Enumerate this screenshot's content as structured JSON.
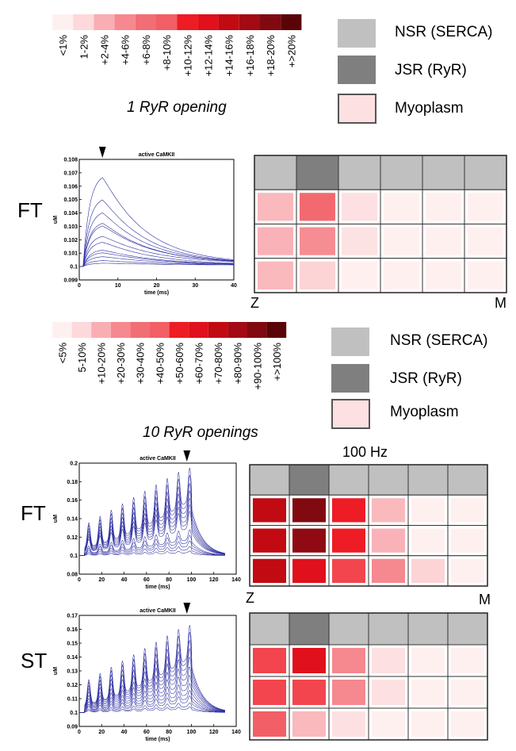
{
  "scale_top": {
    "labels": [
      "<1%",
      "1-2%",
      "+2-4%",
      "+4-6%",
      "+6-8%",
      "+8-10%",
      "+10-12%",
      "+12-14%",
      "+14-16%",
      "+16-18%",
      "+18-20%",
      "+>20%"
    ],
    "colors": [
      "#fff0f0",
      "#fdd9db",
      "#f9aeb4",
      "#f68890",
      "#f26e75",
      "#f25f66",
      "#ee1c24",
      "#e0101c",
      "#c20a12",
      "#a30a14",
      "#800a10",
      "#5a0408"
    ]
  },
  "scale_mid": {
    "labels": [
      "<5%",
      "5-10%",
      "+10-20%",
      "+20-30%",
      "+30-40%",
      "+40-50%",
      "+50-60%",
      "+60-70%",
      "+70-80%",
      "+80-90%",
      "+90-100%",
      "+>100%"
    ],
    "colors": [
      "#fff0f0",
      "#fdd9db",
      "#f9aeb4",
      "#f68890",
      "#f26e75",
      "#f25f66",
      "#ee1c24",
      "#e0101c",
      "#c20a12",
      "#a30a14",
      "#800a10",
      "#5a0408"
    ]
  },
  "legend_top": {
    "items": [
      {
        "label": "NSR (SERCA)",
        "color": "#c0c0c0"
      },
      {
        "label": "JSR (RyR)",
        "color": "#7f7f7f"
      },
      {
        "label": "Myoplasm",
        "color": "#fde0e1"
      }
    ]
  },
  "legend_mid": {
    "items": [
      {
        "label": "NSR (SERCA)",
        "color": "#c0c0c0"
      },
      {
        "label": "JSR (RyR)",
        "color": "#7f7f7f"
      },
      {
        "label": "Myoplasm",
        "color": "#fde0e1"
      }
    ]
  },
  "captions": {
    "top": "1 RyR opening",
    "mid": "10 RyR openings"
  },
  "row_labels": {
    "ft1": "FT",
    "ft2": "FT",
    "st": "ST"
  },
  "axis_marks": {
    "z1": "Z",
    "m1": "M",
    "z2": "Z",
    "m2": "M"
  },
  "frequency": "100 Hz",
  "plot1": {
    "title": "active CaMKII",
    "ylabel": "uM",
    "xlabel": "time (ms)",
    "xticks": [
      "0",
      "10",
      "20",
      "30",
      "40"
    ],
    "yticks": [
      "0.099",
      "0.1",
      "0.101",
      "0.102",
      "0.103",
      "0.104",
      "0.105",
      "0.106",
      "0.107",
      "0.108"
    ],
    "xlim": [
      0,
      40
    ],
    "ylim": [
      0.099,
      0.108
    ],
    "marker_x": 6,
    "line_color": "#2c2ca0",
    "peaks": [
      0.1067,
      0.105,
      0.104,
      0.1032,
      0.103,
      0.1022,
      0.1018,
      0.1012,
      0.101,
      0.1007,
      0.1004,
      0.1002
    ]
  },
  "plot2": {
    "title": "active CaMKII",
    "ylabel": "uM",
    "xlabel": "time (ms)",
    "xticks": [
      "0",
      "20",
      "40",
      "60",
      "80",
      "100",
      "120",
      "140"
    ],
    "yticks": [
      "0.08",
      "0.1",
      "0.12",
      "0.14",
      "0.16",
      "0.18",
      "0.2"
    ],
    "xlim": [
      0,
      140
    ],
    "ylim": [
      0.08,
      0.2
    ],
    "marker_x": 96,
    "line_color": "#2c2ca0",
    "final_peaks": [
      0.195,
      0.187,
      0.178,
      0.17,
      0.162,
      0.155,
      0.148,
      0.128,
      0.122,
      0.116,
      0.11,
      0.105
    ]
  },
  "plot3": {
    "title": "active CaMKII",
    "ylabel": "uM",
    "xlabel": "time (ms)",
    "xticks": [
      "0",
      "20",
      "40",
      "60",
      "80",
      "100",
      "120",
      "140"
    ],
    "yticks": [
      "0.09",
      "0.1",
      "0.11",
      "0.12",
      "0.13",
      "0.14",
      "0.15",
      "0.16",
      "0.17"
    ],
    "xlim": [
      0,
      140
    ],
    "ylim": [
      0.09,
      0.17
    ],
    "marker_x": 96,
    "line_color": "#2c2ca0",
    "final_peaks": [
      0.163,
      0.158,
      0.152,
      0.146,
      0.14,
      0.133,
      0.127,
      0.121,
      0.116,
      0.112,
      0.107,
      0.104
    ]
  },
  "grid1": {
    "top_colors": [
      "#c0c0c0",
      "#7f7f7f",
      "#c0c0c0",
      "#c0c0c0",
      "#c0c0c0",
      "#c0c0c0"
    ],
    "rows": [
      [
        "#f9b9bd",
        "#f26a70",
        "#fde0e1",
        "#fff0f0",
        "#fff0f0",
        "#fff0f0"
      ],
      [
        "#f9b2b7",
        "#f58d93",
        "#fde2e3",
        "#fff0f0",
        "#fff0f0",
        "#fff0f0"
      ],
      [
        "#f9b9bd",
        "#fcd4d6",
        "#fff0f0",
        "#fff0f0",
        "#fff0f0",
        "#fff0f0"
      ]
    ]
  },
  "grid2": {
    "top_colors": [
      "#c0c0c0",
      "#7f7f7f",
      "#c0c0c0",
      "#c0c0c0",
      "#c0c0c0",
      "#c0c0c0"
    ],
    "rows": [
      [
        "#c20a12",
        "#800a10",
        "#ee1c24",
        "#f9b9bd",
        "#fff0f0",
        "#fff0f0"
      ],
      [
        "#c20a12",
        "#8f0a12",
        "#ee1c24",
        "#f9b2b7",
        "#fff0f0",
        "#fff0f0"
      ],
      [
        "#c20a12",
        "#e0101c",
        "#f2454d",
        "#f68890",
        "#fcd4d6",
        "#fff0f0"
      ]
    ]
  },
  "grid3": {
    "top_colors": [
      "#c0c0c0",
      "#7f7f7f",
      "#c0c0c0",
      "#c0c0c0",
      "#c0c0c0",
      "#c0c0c0"
    ],
    "rows": [
      [
        "#f2454d",
        "#e0101c",
        "#f68890",
        "#fde0e1",
        "#fff0f0",
        "#fff0f0"
      ],
      [
        "#f2454d",
        "#f2454d",
        "#f68890",
        "#fde0e1",
        "#fff0f0",
        "#fff0f0"
      ],
      [
        "#f25f66",
        "#f9b9bd",
        "#fde0e1",
        "#fff0f0",
        "#fff0f0",
        "#fff0f0"
      ]
    ]
  }
}
